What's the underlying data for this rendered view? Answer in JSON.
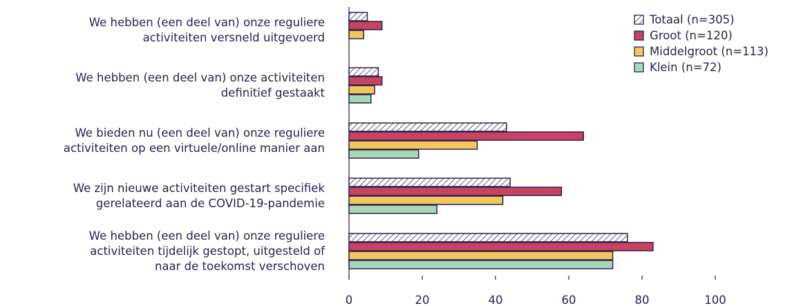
{
  "chart_data": {
    "type": "barh",
    "categories": [
      "We hebben (een deel van) onze reguliere\nactiviteiten versneld uitgevoerd",
      "We hebben (een deel van) onze activiteiten\ndefinitief gestaakt",
      "We bieden nu (een deel van) onze reguliere\nactiviteiten op een virtuele/online manier aan",
      "We zijn nieuwe activiteiten gestart specifiek\ngerelateerd aan de COVID-19-pandemie",
      "We hebben (een deel van) onze reguliere\nactiviteiten tijdelijk gestopt, uitgesteld of\nnaar de toekomst verschoven"
    ],
    "series": [
      {
        "name": "Totaal (n=305)",
        "color": "hatch",
        "values": [
          5,
          8,
          43,
          44,
          76
        ]
      },
      {
        "name": "Groot (n=120)",
        "color": "#c8435f",
        "values": [
          9,
          9,
          64,
          58,
          83
        ]
      },
      {
        "name": "Middelgroot (n=113)",
        "color": "#f2c75c",
        "values": [
          4,
          7,
          35,
          42,
          72
        ]
      },
      {
        "name": "Klein (n=72)",
        "color": "#a9d6b6",
        "values": [
          0,
          6,
          19,
          24,
          72
        ]
      }
    ],
    "xlim": [
      0,
      100
    ],
    "xticks": [
      0,
      20,
      40,
      60,
      80,
      100
    ],
    "legend": "top-right"
  }
}
